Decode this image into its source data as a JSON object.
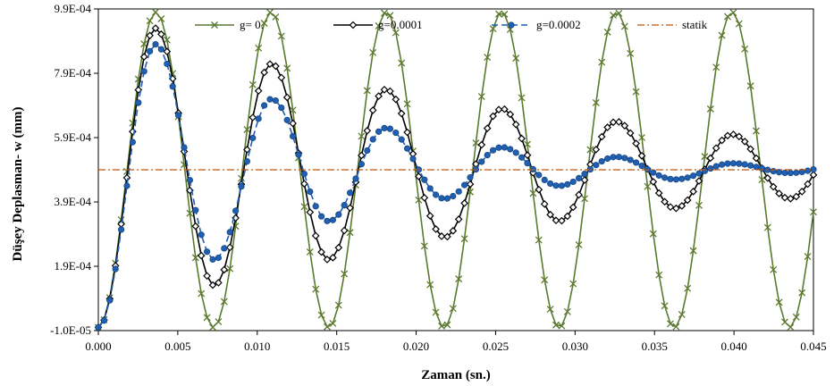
{
  "chart_data": {
    "type": "line",
    "xlabel": "Zaman (sn.)",
    "ylabel": "Düşey Deplasman- w (mm)",
    "xlim": [
      0,
      0.045
    ],
    "ylim": [
      -1e-05,
      0.00099
    ],
    "x_ticks": [
      "0.000",
      "0.005",
      "0.010",
      "0.015",
      "0.020",
      "0.025",
      "0.030",
      "0.035",
      "0.040",
      "0.045"
    ],
    "y_ticks": [
      "-1.0E-05",
      "1.9E-04",
      "3.9E-04",
      "5.9E-04",
      "7.9E-04",
      "9.9E-04"
    ],
    "grid": false,
    "legend_position": "top",
    "series": [
      {
        "name": "g= 0.",
        "color": "#5a7a2e",
        "marker": "x",
        "line": "solid",
        "equation": "w = 0.00049*(1 - cos(2*pi*t/0.00725))",
        "peaks": [
          [
            0.0036,
            0.00098
          ],
          [
            0.0109,
            0.00098
          ],
          [
            0.0181,
            0.00098
          ],
          [
            0.0254,
            0.00098
          ],
          [
            0.0326,
            0.00098
          ],
          [
            0.0399,
            0.00098
          ]
        ],
        "troughs": [
          [
            0.0073,
            0.0
          ],
          [
            0.0145,
            0.0
          ],
          [
            0.0218,
            0.0
          ],
          [
            0.029,
            0.0
          ],
          [
            0.0363,
            0.0
          ],
          [
            0.0435,
            0.0
          ]
        ]
      },
      {
        "name": "g=0.0001",
        "color": "#000000",
        "marker": "diamond",
        "line": "solid",
        "peaks": [
          [
            0.0036,
            0.00093
          ],
          [
            0.0109,
            0.00082
          ],
          [
            0.0181,
            0.00074
          ],
          [
            0.0254,
            0.00068
          ],
          [
            0.0326,
            0.00064
          ],
          [
            0.0399,
            0.0006
          ]
        ],
        "troughs": [
          [
            0.0073,
            0.00013
          ],
          [
            0.0145,
            0.00021
          ],
          [
            0.0218,
            0.00028
          ],
          [
            0.029,
            0.00033
          ],
          [
            0.0363,
            0.00037
          ],
          [
            0.0435,
            0.0004
          ]
        ]
      },
      {
        "name": "g=0.0002",
        "color": "#1f5fb4",
        "marker": "circle",
        "line": "dashed",
        "peaks": [
          [
            0.0036,
            0.00088
          ],
          [
            0.0109,
            0.00071
          ],
          [
            0.0181,
            0.00062
          ],
          [
            0.0254,
            0.00056
          ],
          [
            0.0326,
            0.00053
          ],
          [
            0.0399,
            0.00051
          ]
        ],
        "troughs": [
          [
            0.0073,
            0.00021
          ],
          [
            0.0145,
            0.00033
          ],
          [
            0.0218,
            0.0004
          ],
          [
            0.029,
            0.00044
          ],
          [
            0.0363,
            0.00046
          ],
          [
            0.0435,
            0.00048
          ]
        ]
      },
      {
        "name": "statik",
        "color": "#c0540f",
        "marker": "none",
        "line": "dashdot",
        "values": [
          [
            0,
            0.00049
          ],
          [
            0.045,
            0.00049
          ]
        ]
      }
    ]
  }
}
